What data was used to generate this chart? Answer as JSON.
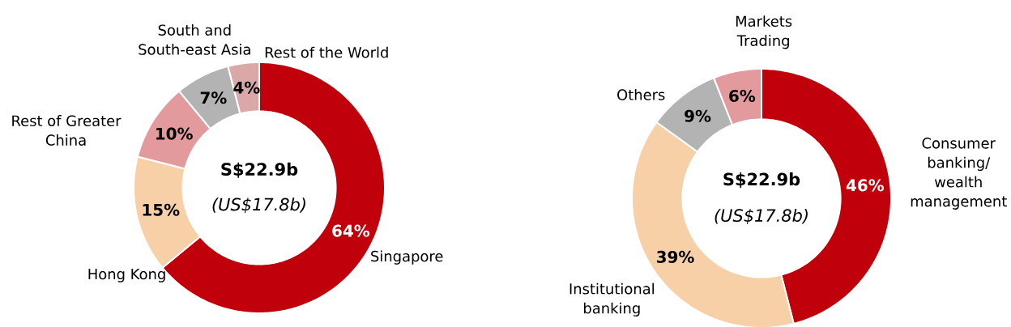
{
  "chart_data": [
    {
      "type": "donut",
      "categories": [
        "Singapore",
        "Hong Kong",
        "Rest of Greater China",
        "South and South-east Asia",
        "Rest of the World"
      ],
      "values": [
        64,
        15,
        10,
        7,
        4
      ],
      "colors": [
        "#c0000b",
        "#f8d0a8",
        "#e39a9c",
        "#b3b3b3",
        "#dba8a8"
      ],
      "value_labels": [
        "64%",
        "15%",
        "10%",
        "7%",
        "4%"
      ],
      "annotations": [
        "S$22.9b",
        "(US$17.8b)"
      ]
    },
    {
      "type": "donut",
      "categories": [
        "Consumer banking/ wealth management",
        "Institutional banking",
        "Others",
        "Markets Trading"
      ],
      "values": [
        46,
        39,
        9,
        6
      ],
      "colors": [
        "#c0000b",
        "#f8d0a8",
        "#b3b3b3",
        "#e39a9c"
      ],
      "value_labels": [
        "46%",
        "39%",
        "9%",
        "6%"
      ],
      "annotations": [
        "S$22.9b",
        "(US$17.8b)"
      ]
    }
  ]
}
